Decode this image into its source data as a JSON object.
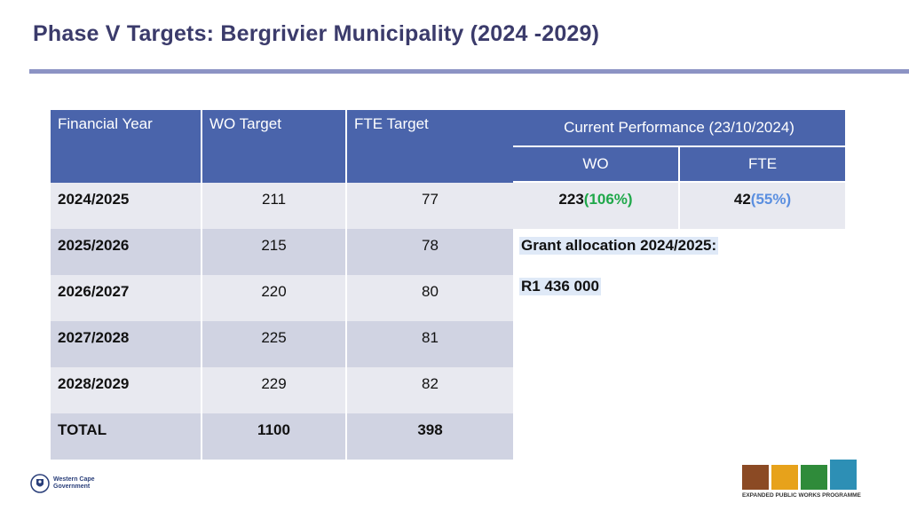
{
  "title": "Phase V Targets: Bergrivier Municipality (2024 -2029)",
  "targets_table": {
    "headers": [
      "Financial Year",
      "WO Target",
      "FTE Target"
    ],
    "rows": [
      {
        "year": "2024/2025",
        "wo": "211",
        "fte": "77"
      },
      {
        "year": "2025/2026",
        "wo": "215",
        "fte": "78"
      },
      {
        "year": "2026/2027",
        "wo": "220",
        "fte": "80"
      },
      {
        "year": "2027/2028",
        "wo": "225",
        "fte": "81"
      },
      {
        "year": "2028/2029",
        "wo": "229",
        "fte": "82"
      }
    ],
    "total": {
      "label": "TOTAL",
      "wo": "1100",
      "fte": "398"
    }
  },
  "performance": {
    "header": "Current Performance (23/10/2024)",
    "sub_headers": [
      "WO",
      "FTE"
    ],
    "wo_value": "223",
    "wo_pct": "(106%)",
    "fte_value": "42",
    "fte_pct": "(55%)"
  },
  "grant": {
    "label": "Grant allocation 2024/2025:",
    "value": "R1 436 000"
  },
  "footer": {
    "wcg_line1": "Western Cape",
    "wcg_line2": "Government",
    "epwp_text": "EXPANDED PUBLIC WORKS PROGRAMME"
  },
  "colors": {
    "header_blue": "#4a64ab",
    "row_light": "#e8e9f0",
    "row_dark": "#d0d3e2",
    "pct_green": "#1fa84a",
    "pct_blue": "#5b8fe0"
  }
}
